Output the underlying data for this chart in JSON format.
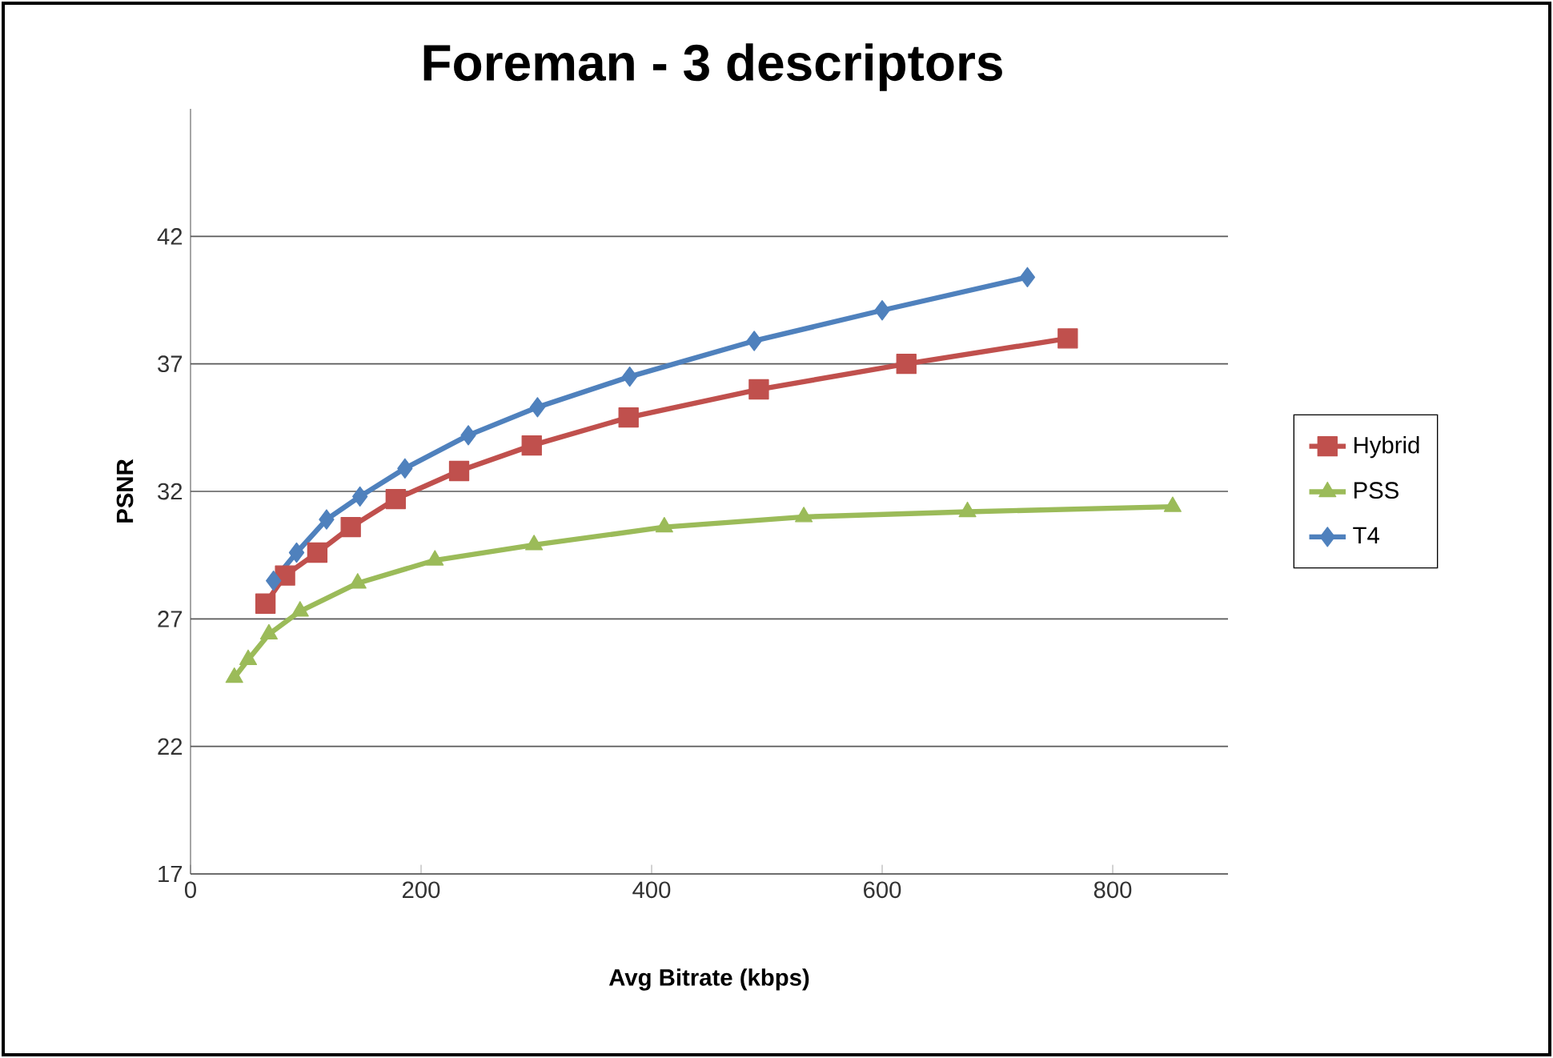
{
  "chart_data": {
    "type": "line",
    "title": "Foreman - 3 descriptors",
    "xlabel": "Avg Bitrate (kbps)",
    "ylabel": "PSNR",
    "xlim": [
      0,
      900
    ],
    "xticks": [
      0,
      200,
      400,
      600,
      800
    ],
    "ylim": [
      17,
      47
    ],
    "yticks": [
      17,
      22,
      27,
      32,
      37,
      42
    ],
    "grid": "y",
    "legend": "right",
    "line_style": "solid",
    "series": [
      {
        "name": "Hybrid",
        "color": "#c0504d",
        "marker": "square",
        "x": [
          65,
          82,
          110,
          139,
          178,
          233,
          296,
          380,
          493,
          621,
          761
        ],
        "values": [
          27.6,
          28.7,
          29.6,
          30.6,
          31.7,
          32.8,
          33.8,
          34.9,
          36.0,
          37.0,
          38.0
        ]
      },
      {
        "name": "PSS",
        "color": "#9bbb59",
        "marker": "triangle",
        "x": [
          38,
          50,
          68,
          95,
          145,
          212,
          298,
          411,
          532,
          674,
          852
        ],
        "values": [
          24.7,
          25.4,
          26.4,
          27.3,
          28.4,
          29.3,
          29.9,
          30.6,
          31.0,
          31.2,
          31.4
        ]
      },
      {
        "name": "T4",
        "color": "#4f81bd",
        "marker": "diamond",
        "x": [
          72,
          92,
          118,
          147,
          186,
          241,
          301,
          381,
          489,
          600,
          726
        ],
        "values": [
          28.5,
          29.6,
          30.9,
          31.8,
          32.9,
          34.2,
          35.3,
          36.5,
          37.9,
          39.1,
          40.4
        ]
      }
    ]
  }
}
